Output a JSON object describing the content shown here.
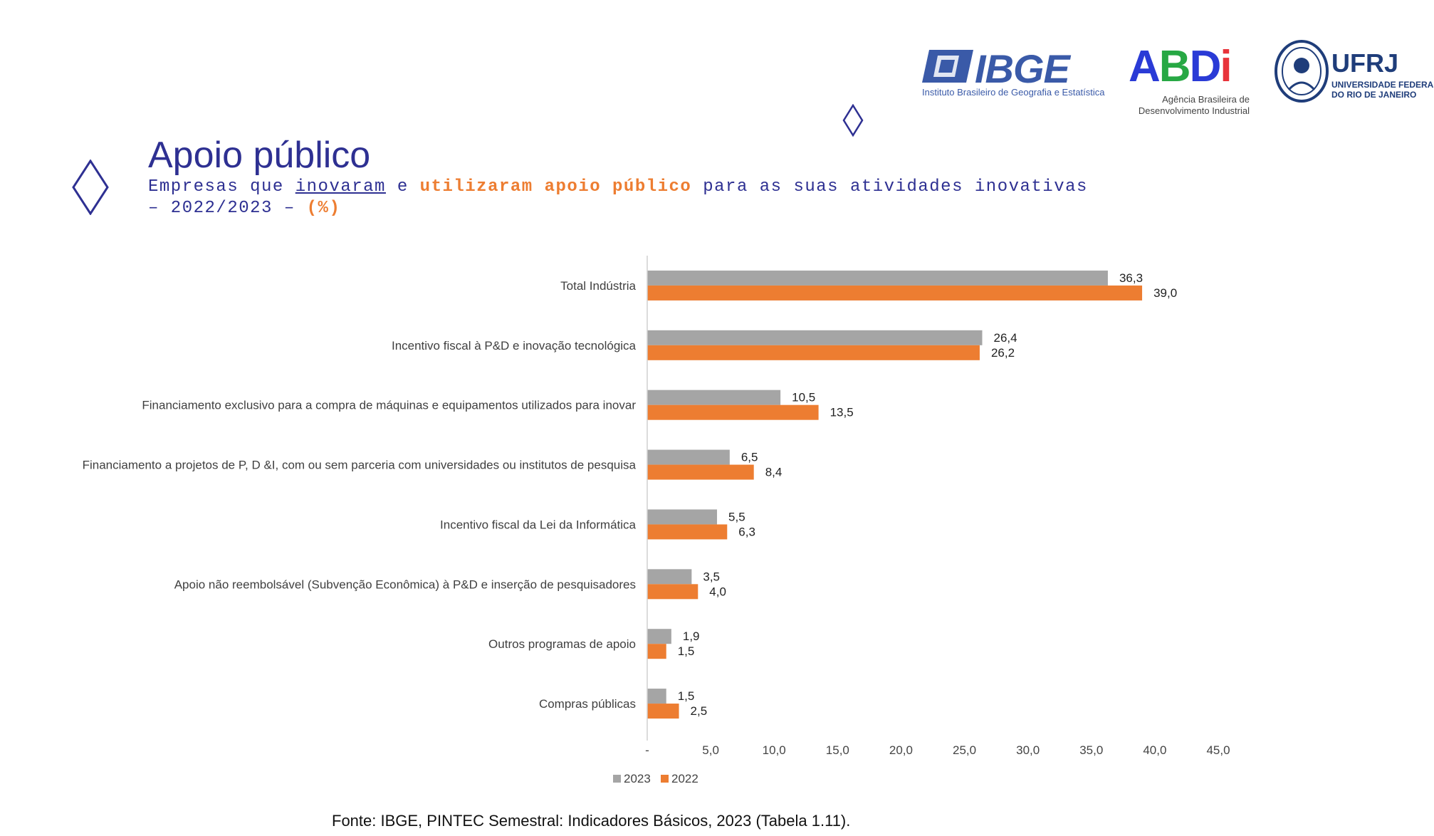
{
  "logos": {
    "ibge": {
      "name": "IBGE",
      "subtitle": "Instituto Brasileiro de Geografia e Estatística"
    },
    "abdi": {
      "letters": [
        "A",
        "B",
        "D",
        "i"
      ],
      "subtitle_line1": "Agência Brasileira de",
      "subtitle_line2": "Desenvolvimento Industrial"
    },
    "ufrj": {
      "name": "UFRJ",
      "subtitle_line1": "UNIVERSIDADE FEDERAL",
      "subtitle_line2": "DO RIO DE JANEIRO"
    }
  },
  "header": {
    "title": "Apoio público",
    "subtitle": {
      "part1": "Empresas que ",
      "underlined": "inovaram",
      "part2": " e ",
      "highlight": "utilizaram apoio público",
      "part3": " para as suas atividades inovativas – 2022/2023 – ",
      "unit": "(%)"
    }
  },
  "colors": {
    "series_2023": "#a5a5a5",
    "series_2022": "#ed7d31",
    "title": "#2e3092"
  },
  "chart_data": {
    "type": "bar",
    "orientation": "horizontal",
    "title": "",
    "categories": [
      "Total Indústria",
      "Incentivo fiscal à P&D e inovação tecnológica",
      "Financiamento exclusivo para a compra de máquinas e equipamentos utilizados para inovar",
      "Financiamento a projetos de P, D &I, com ou sem parceria com universidades ou institutos de pesquisa",
      "Incentivo fiscal da Lei da Informática",
      "Apoio não reembolsável (Subvenção Econômica) à P&D e inserção de pesquisadores",
      "Outros programas de apoio",
      "Compras públicas"
    ],
    "series": [
      {
        "name": "2023",
        "values": [
          36.3,
          26.4,
          10.5,
          6.5,
          5.5,
          3.5,
          1.9,
          1.5
        ],
        "labels": [
          "36,3",
          "26,4",
          "10,5",
          "6,5",
          "5,5",
          "3,5",
          "1,9",
          "1,5"
        ]
      },
      {
        "name": "2022",
        "values": [
          39.0,
          26.2,
          13.5,
          8.4,
          6.3,
          4.0,
          1.5,
          2.5
        ],
        "labels": [
          "39,0",
          "26,2",
          "13,5",
          "8,4",
          "6,3",
          "4,0",
          "1,5",
          "2,5"
        ]
      }
    ],
    "xlim": [
      0,
      45
    ],
    "x_ticks": [
      0,
      5,
      10,
      15,
      20,
      25,
      30,
      35,
      40,
      45
    ],
    "x_tick_labels": [
      "-",
      "5,0",
      "10,0",
      "15,0",
      "20,0",
      "25,0",
      "30,0",
      "35,0",
      "40,0",
      "45,0"
    ],
    "xlabel": "",
    "ylabel": "",
    "grid": false,
    "legend": "bottom"
  },
  "source": "Fonte: IBGE, PINTEC Semestral: Indicadores Básicos, 2023 (Tabela 1.11)."
}
